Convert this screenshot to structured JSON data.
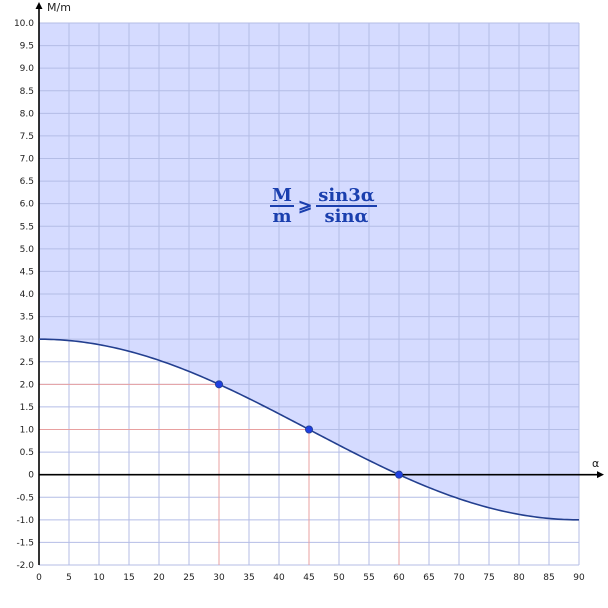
{
  "chart_data": {
    "type": "line",
    "xlabel": "α",
    "ylabel": "M/m",
    "xlim": [
      0,
      90
    ],
    "ylim": [
      -2.0,
      10.0
    ],
    "x_ticks": [
      "0",
      "5",
      "10",
      "15",
      "20",
      "25",
      "30",
      "35",
      "40",
      "45",
      "50",
      "55",
      "60",
      "65",
      "70",
      "75",
      "80",
      "85",
      "90"
    ],
    "y_ticks": [
      "-2.0",
      "-1.5",
      "-1.0",
      "-0.5",
      "0",
      "0.5",
      "1.0",
      "1.5",
      "2.0",
      "2.5",
      "3.0",
      "3.5",
      "4.0",
      "4.5",
      "5.0",
      "5.5",
      "6.0",
      "6.5",
      "7.0",
      "7.5",
      "8.0",
      "8.5",
      "9.0",
      "9.5",
      "10.0"
    ],
    "grid": true,
    "function": "sin3α/sinα",
    "points": [
      {
        "x": 30,
        "y": 2
      },
      {
        "x": 45,
        "y": 1
      },
      {
        "x": 60,
        "y": 0
      }
    ],
    "shaded_region": "above curve",
    "colors": {
      "shade": "#d5dbff",
      "grid": "#b4bde6",
      "curve": "#233f8f",
      "points": "#1f3fe0",
      "guides": "#e8a0a0",
      "axis": "#000000"
    }
  },
  "formula": {
    "lhs_num": "M",
    "lhs_den": "m",
    "relation": "⩾",
    "rhs_num": "sin3α",
    "rhs_den": "sinα"
  }
}
